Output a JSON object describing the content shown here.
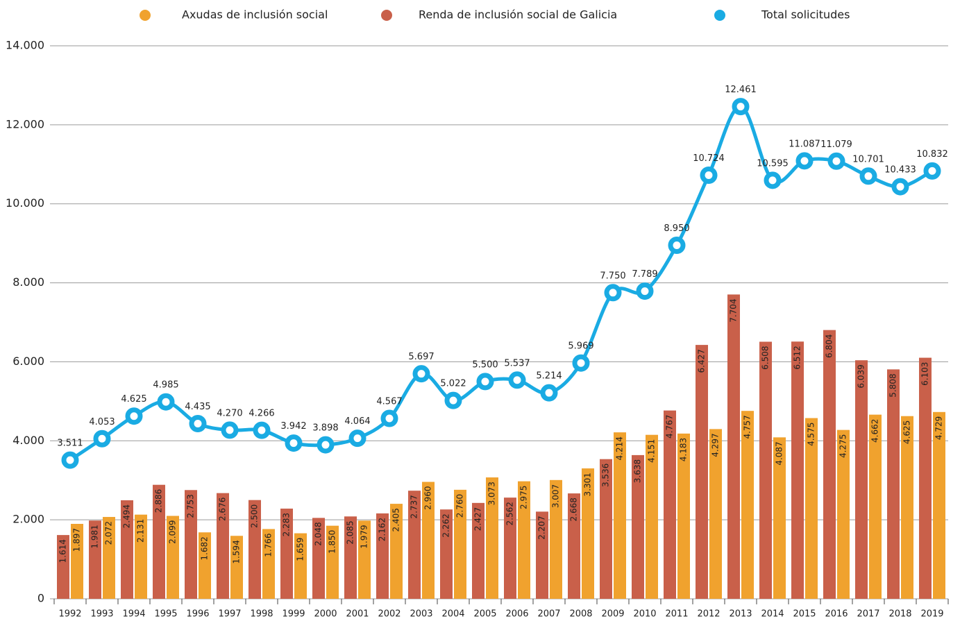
{
  "chart_data": {
    "type": "bar-line",
    "categories": [
      "1992",
      "1993",
      "1994",
      "1995",
      "1996",
      "1997",
      "1998",
      "1999",
      "2000",
      "2001",
      "2002",
      "2003",
      "2004",
      "2005",
      "2006",
      "2007",
      "2008",
      "2009",
      "2010",
      "2011",
      "2012",
      "2013",
      "2014",
      "2015",
      "2016",
      "2017",
      "2018",
      "2019"
    ],
    "series": [
      {
        "name": "Axudas de inclusión social",
        "color": "#f0a22e",
        "type": "bar",
        "values": [
          1897,
          2072,
          2131,
          2099,
          1682,
          1594,
          1766,
          1659,
          1850,
          1979,
          2405,
          2960,
          2760,
          3073,
          2975,
          3007,
          3301,
          4214,
          4151,
          4183,
          4297,
          4757,
          4087,
          4575,
          4275,
          4662,
          4625,
          4729
        ],
        "value_labels": [
          "1.897",
          "2.072",
          "2.131",
          "2.099",
          "1.682",
          "1.594",
          "1.766",
          "1.659",
          "1.850",
          "1.979",
          "2.405",
          "2.960",
          "2.760",
          "3.073",
          "2.975",
          "3.007",
          "3.301",
          "4.214",
          "4.151",
          "4.183",
          "4.297",
          "4.757",
          "4.087",
          "4.575",
          "4.275",
          "4.662",
          "4.625",
          "4.729"
        ]
      },
      {
        "name": "Renda de inclusión social de Galicia",
        "color": "#c9604a",
        "type": "bar",
        "values": [
          1614,
          1981,
          2494,
          2886,
          2753,
          2676,
          2500,
          2283,
          2048,
          2085,
          2162,
          2737,
          2262,
          2427,
          2562,
          2207,
          2668,
          3536,
          3638,
          4767,
          6427,
          7704,
          6508,
          6512,
          6804,
          6039,
          5808,
          6103
        ],
        "value_labels": [
          "1.614",
          "1.981",
          "2.494",
          "2.886",
          "2.753",
          "2.676",
          "2.500",
          "2.283",
          "2.048",
          "2.085",
          "2.162",
          "2.737",
          "2.262",
          "2.427",
          "2.562",
          "2.207",
          "2.668",
          "3.536",
          "3.638",
          "4.767",
          "6.427",
          "7.704",
          "6.508",
          "6.512",
          "6.804",
          "6.039",
          "5.808",
          "6.103"
        ]
      },
      {
        "name": "Total solicitudes",
        "color": "#1aabe3",
        "type": "line",
        "values": [
          3511,
          4053,
          4625,
          4985,
          4435,
          4270,
          4266,
          3942,
          3898,
          4064,
          4567,
          5697,
          5022,
          5500,
          5537,
          5214,
          5969,
          7750,
          7789,
          8950,
          10724,
          12461,
          10595,
          11087,
          11079,
          10701,
          10433,
          10832
        ],
        "value_labels": [
          "3.511",
          "4.053",
          "4.625",
          "4.985",
          "4.435",
          "4.270",
          "4.266",
          "3.942",
          "3.898",
          "4.064",
          "4.567",
          "5.697",
          "5.022",
          "5.500",
          "5.537",
          "5.214",
          "5.969",
          "7.750",
          "7.789",
          "8.950",
          "10.724",
          "12.461",
          "10.595",
          "11.087",
          "11.079",
          "10.701",
          "10.433",
          "10.832"
        ]
      }
    ],
    "ylim": [
      0,
      14000
    ],
    "yticks": [
      0,
      {
        "value": 2000,
        "label": "2.000"
      },
      {
        "value": 4000,
        "label": "4.000"
      },
      {
        "value": 6000,
        "label": "6.000"
      },
      {
        "value": 8000,
        "label": "8.000"
      },
      {
        "value": 10000,
        "label": "10.000"
      },
      {
        "value": 12000,
        "label": "12.000"
      },
      {
        "value": 14000,
        "label": "14.000"
      }
    ],
    "grid": true,
    "legend": "top"
  }
}
